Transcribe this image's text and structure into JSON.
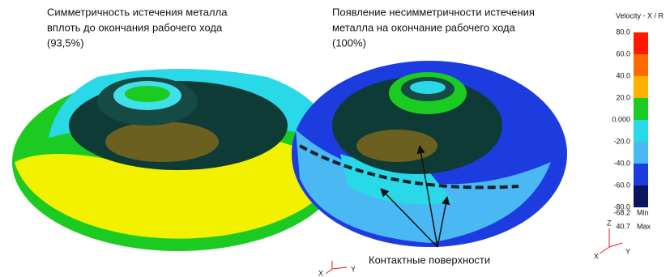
{
  "captions": [
    {
      "lines": [
        "Симметричность истечения металла",
        "вплоть до окончания рабочего хода",
        "(93,5%)"
      ]
    },
    {
      "lines": [
        "Появление несимметричности истечения",
        "металла на окончание рабочего хода",
        "(100%)"
      ]
    }
  ],
  "legend": {
    "title": "Velocity - X / R",
    "ticks": [
      "80.0",
      "60.0",
      "40.0",
      "20.0",
      "0.000",
      "-20.0",
      "-40.0",
      "-60.0",
      "-80.0"
    ],
    "min": {
      "value": "-68.2",
      "label": "Min"
    },
    "max": {
      "value": "40.7",
      "label": "Max"
    }
  },
  "annotation": "Контактные поверхности",
  "triads": [
    {
      "z": "Z",
      "x": "X",
      "y": "Y"
    },
    {
      "x": "X",
      "y": "Y"
    }
  ]
}
